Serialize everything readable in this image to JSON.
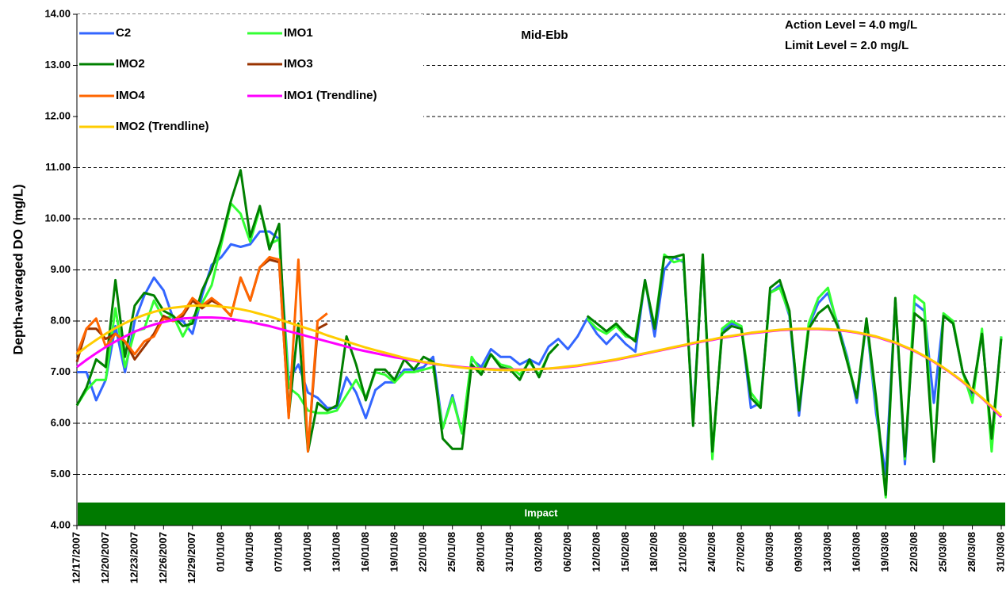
{
  "chart_data": {
    "type": "line",
    "y_label": "Depth-averaged DO (mg/L)",
    "annotations": [
      "Mid-Ebb",
      "Action Level = 4.0 mg/L",
      "Limit Level = 2.0 mg/L"
    ],
    "impact_label": "Impact",
    "grid": true,
    "ylim": [
      4,
      14
    ],
    "yticks": [
      {
        "value": 4,
        "label": "4.00"
      },
      {
        "value": 5,
        "label": "5.00"
      },
      {
        "value": 6,
        "label": "6.00"
      },
      {
        "value": 7,
        "label": "7.00"
      },
      {
        "value": 8,
        "label": "8.00"
      },
      {
        "value": 9,
        "label": "9.00"
      },
      {
        "value": 10,
        "label": "10.00"
      },
      {
        "value": 11,
        "label": "11.00"
      },
      {
        "value": 12,
        "label": "12.00"
      },
      {
        "value": 13,
        "label": "13.00"
      },
      {
        "value": 14,
        "label": "14.00"
      }
    ],
    "categories": [
      "12/17/2007",
      null,
      null,
      "12/20/2007",
      null,
      null,
      "12/23/2007",
      null,
      null,
      "12/26/2007",
      null,
      null,
      "12/29/2007",
      null,
      null,
      "01/01/08",
      null,
      null,
      "04/01/08",
      null,
      null,
      "07/01/08",
      null,
      null,
      "10/01/08",
      null,
      null,
      "13/01/08",
      null,
      null,
      "16/01/08",
      null,
      null,
      "19/01/08",
      null,
      null,
      "22/01/08",
      null,
      null,
      "25/01/08",
      null,
      null,
      "28/01/08",
      null,
      null,
      "31/01/08",
      null,
      null,
      "03/02/08",
      null,
      null,
      "06/02/08",
      null,
      null,
      "12/02/08",
      null,
      null,
      "15/02/08",
      null,
      null,
      "18/02/08",
      null,
      null,
      "21/02/08",
      null,
      null,
      "24/02/08",
      null,
      null,
      "27/02/08",
      null,
      null,
      "06/03/08",
      null,
      null,
      "09/03/08",
      null,
      null,
      "13/03/08",
      null,
      null,
      "16/03/08",
      null,
      null,
      "19/03/08",
      null,
      null,
      "22/03/08",
      null,
      null,
      "25/03/08",
      null,
      null,
      "28/03/08",
      null,
      null,
      "31/03/08"
    ],
    "series": [
      {
        "name": "C2",
        "color": "#3366ff",
        "values": [
          7.0,
          7.0,
          6.45,
          6.85,
          7.9,
          7.0,
          8.0,
          8.5,
          8.85,
          8.6,
          8.05,
          8.0,
          7.75,
          8.5,
          9.1,
          9.25,
          9.5,
          9.45,
          9.5,
          9.75,
          9.75,
          9.6,
          6.85,
          7.15,
          6.6,
          6.5,
          6.3,
          6.3,
          6.9,
          6.6,
          6.1,
          6.65,
          6.8,
          6.8,
          7.05,
          7.05,
          7.1,
          7.3,
          5.9,
          6.55,
          5.8,
          7.25,
          7.1,
          7.45,
          7.3,
          7.3,
          7.15,
          7.25,
          7.15,
          7.5,
          7.65,
          7.45,
          7.7,
          8.05,
          7.75,
          7.55,
          7.75,
          7.55,
          7.4,
          8.8,
          7.7,
          9.0,
          9.25,
          9.15,
          6.1,
          9.2,
          5.35,
          7.8,
          7.95,
          7.9,
          6.3,
          6.4,
          8.55,
          8.7,
          8.1,
          6.15,
          7.9,
          8.35,
          8.55,
          7.95,
          7.3,
          6.4,
          8.0,
          6.2,
          5.0,
          8.4,
          5.2,
          8.35,
          8.2,
          6.4,
          8.1,
          7.95,
          7.0,
          6.5,
          7.8,
          5.6,
          7.7
        ]
      },
      {
        "name": "IMO1",
        "color": "#33ff33",
        "values": [
          6.35,
          6.65,
          6.85,
          6.85,
          8.25,
          7.1,
          7.8,
          7.85,
          8.4,
          8.05,
          8.1,
          7.7,
          8.05,
          8.35,
          8.7,
          9.5,
          10.3,
          10.1,
          9.55,
          10.2,
          9.5,
          9.6,
          6.7,
          6.55,
          6.25,
          6.2,
          6.2,
          6.25,
          6.55,
          6.85,
          6.5,
          7.0,
          6.95,
          6.8,
          7.0,
          7.0,
          7.05,
          7.1,
          5.9,
          6.5,
          5.8,
          7.3,
          7.0,
          7.35,
          7.15,
          7.1,
          6.95,
          7.2,
          6.95,
          7.35,
          7.55,
          null,
          null,
          8.05,
          7.85,
          7.75,
          7.9,
          7.7,
          7.65,
          8.75,
          7.9,
          9.3,
          9.15,
          9.2,
          6.0,
          9.25,
          5.3,
          7.85,
          8.0,
          7.9,
          6.6,
          6.35,
          8.55,
          8.65,
          8.15,
          6.3,
          7.95,
          8.45,
          8.65,
          7.9,
          7.25,
          6.5,
          8.0,
          6.4,
          4.55,
          8.4,
          5.3,
          8.5,
          8.35,
          5.3,
          8.15,
          8.0,
          7.0,
          6.4,
          7.85,
          5.45,
          7.7
        ]
      },
      {
        "name": "IMO2",
        "color": "#008000",
        "values": [
          6.35,
          6.7,
          7.25,
          7.1,
          8.8,
          7.3,
          8.3,
          8.55,
          8.5,
          8.2,
          8.1,
          7.9,
          7.95,
          8.6,
          9.0,
          9.6,
          10.35,
          10.95,
          9.65,
          10.25,
          9.4,
          9.9,
          6.15,
          7.95,
          5.45,
          6.4,
          6.25,
          6.35,
          7.7,
          7.15,
          6.45,
          7.05,
          7.05,
          6.85,
          7.25,
          7.05,
          7.3,
          7.2,
          5.7,
          5.5,
          5.5,
          7.15,
          6.95,
          7.35,
          7.1,
          7.05,
          6.85,
          7.25,
          6.9,
          7.35,
          7.55,
          null,
          null,
          8.1,
          7.95,
          7.8,
          7.95,
          7.75,
          7.6,
          8.8,
          7.85,
          9.25,
          9.25,
          9.3,
          5.95,
          9.3,
          5.45,
          7.75,
          7.9,
          7.85,
          6.5,
          6.3,
          8.65,
          8.8,
          8.2,
          6.25,
          7.85,
          8.15,
          8.3,
          7.9,
          7.2,
          6.5,
          8.05,
          6.5,
          4.6,
          8.45,
          5.35,
          8.15,
          8.0,
          5.25,
          8.1,
          7.95,
          7.0,
          6.6,
          7.75,
          5.7,
          7.65
        ]
      },
      {
        "name": "IMO3",
        "color": "#993300",
        "values": [
          7.2,
          7.85,
          7.85,
          7.65,
          7.75,
          7.6,
          7.25,
          7.5,
          7.75,
          8.1,
          8.0,
          8.1,
          8.4,
          8.25,
          8.4,
          8.3,
          8.1,
          8.85,
          8.4,
          9.05,
          9.2,
          9.15,
          6.15,
          null,
          5.45,
          7.85,
          7.95,
          null,
          null,
          null,
          null,
          null,
          null,
          null,
          null,
          null,
          null,
          null,
          null,
          null,
          null,
          null,
          null,
          null,
          null,
          null,
          null,
          null,
          null,
          null,
          null,
          null,
          null,
          null,
          null,
          null,
          null,
          null,
          null,
          null,
          null,
          null,
          null,
          null,
          null,
          null,
          null,
          null,
          null,
          null,
          null,
          null,
          null,
          null,
          null,
          null,
          null,
          null,
          null,
          null,
          null,
          null,
          null,
          null,
          null,
          null,
          null,
          null,
          null,
          null,
          null,
          null,
          null,
          null,
          null,
          null,
          null
        ]
      },
      {
        "name": "IMO4",
        "color": "#ff6600",
        "values": [
          7.35,
          7.85,
          8.05,
          7.5,
          7.75,
          7.6,
          7.35,
          7.6,
          7.7,
          8.05,
          8.0,
          8.15,
          8.45,
          8.3,
          8.45,
          8.3,
          8.1,
          8.85,
          8.4,
          9.05,
          9.25,
          9.2,
          6.1,
          9.2,
          5.45,
          8.0,
          8.15,
          null,
          null,
          null,
          null,
          null,
          null,
          null,
          null,
          null,
          null,
          null,
          null,
          null,
          null,
          null,
          null,
          null,
          null,
          null,
          null,
          null,
          null,
          null,
          null,
          null,
          null,
          null,
          null,
          null,
          null,
          null,
          null,
          null,
          null,
          null,
          null,
          null,
          null,
          null,
          null,
          null,
          null,
          null,
          null,
          null,
          null,
          null,
          null,
          null,
          null,
          null,
          null,
          null,
          null,
          null,
          null,
          null,
          null,
          null,
          null,
          null,
          null,
          null,
          null,
          null,
          null,
          null,
          null,
          null,
          null
        ]
      },
      {
        "name": "IMO1 (Trendline)",
        "color": "#ff00ff",
        "values": [
          7.1,
          7.24,
          7.37,
          7.49,
          7.6,
          7.7,
          7.79,
          7.87,
          7.93,
          7.98,
          8.02,
          8.05,
          8.06,
          8.07,
          8.07,
          8.06,
          8.04,
          8.01,
          7.98,
          7.94,
          7.9,
          7.85,
          7.8,
          7.75,
          7.7,
          7.65,
          7.6,
          7.55,
          7.5,
          7.45,
          7.41,
          7.37,
          7.33,
          7.29,
          7.26,
          7.22,
          7.19,
          7.16,
          7.14,
          7.12,
          7.1,
          7.08,
          7.07,
          7.06,
          7.05,
          7.05,
          7.05,
          7.05,
          7.06,
          7.07,
          7.08,
          7.1,
          7.12,
          7.15,
          7.18,
          7.21,
          7.24,
          7.28,
          7.32,
          7.36,
          7.4,
          7.44,
          7.48,
          7.52,
          7.56,
          7.6,
          7.63,
          7.67,
          7.7,
          7.73,
          7.76,
          7.78,
          7.8,
          7.82,
          7.83,
          7.84,
          7.84,
          7.84,
          7.83,
          7.82,
          7.8,
          7.77,
          7.73,
          7.69,
          7.63,
          7.57,
          7.49,
          7.41,
          7.31,
          7.2,
          7.08,
          6.95,
          6.81,
          6.65,
          6.49,
          6.31,
          6.12
        ]
      },
      {
        "name": "IMO2 (Trendline)",
        "color": "#ffcc00",
        "values": [
          7.35,
          7.5,
          7.63,
          7.75,
          7.86,
          7.96,
          8.05,
          8.12,
          8.18,
          8.23,
          8.26,
          8.28,
          8.3,
          8.3,
          8.3,
          8.28,
          8.26,
          8.23,
          8.19,
          8.14,
          8.09,
          8.03,
          7.97,
          7.91,
          7.85,
          7.79,
          7.72,
          7.66,
          7.6,
          7.54,
          7.48,
          7.43,
          7.38,
          7.33,
          7.28,
          7.24,
          7.2,
          7.17,
          7.14,
          7.11,
          7.09,
          7.07,
          7.06,
          7.05,
          7.04,
          7.04,
          7.04,
          7.05,
          7.06,
          7.07,
          7.09,
          7.11,
          7.13,
          7.16,
          7.19,
          7.22,
          7.25,
          7.29,
          7.33,
          7.37,
          7.41,
          7.45,
          7.49,
          7.53,
          7.57,
          7.61,
          7.64,
          7.68,
          7.71,
          7.74,
          7.77,
          7.79,
          7.81,
          7.83,
          7.84,
          7.85,
          7.85,
          7.85,
          7.84,
          7.83,
          7.81,
          7.78,
          7.74,
          7.7,
          7.64,
          7.58,
          7.5,
          7.42,
          7.32,
          7.21,
          7.09,
          6.96,
          6.82,
          6.66,
          6.5,
          6.33,
          6.15
        ]
      }
    ]
  }
}
